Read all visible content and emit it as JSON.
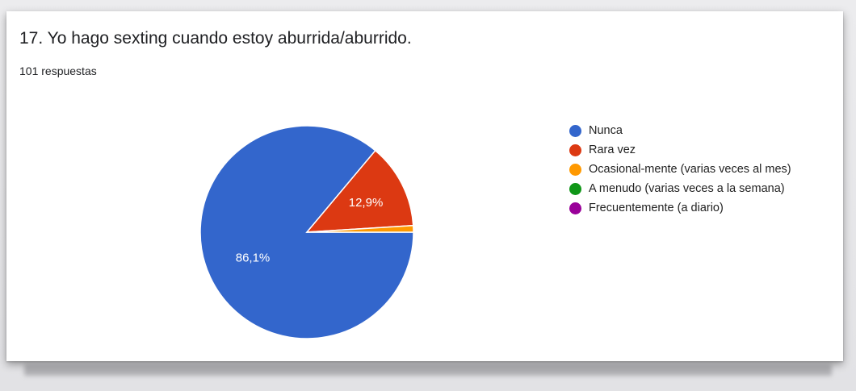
{
  "question": {
    "title": "17. Yo hago sexting cuando estoy aburrida/aburrido.",
    "responses": "101 respuestas"
  },
  "chart_data": {
    "type": "pie",
    "legend_position": "right",
    "slices": [
      {
        "label": "Nunca",
        "value": 86.1,
        "data_label": "86,1%",
        "color": "#3366cc"
      },
      {
        "label": "Rara vez",
        "value": 12.9,
        "data_label": "12,9%",
        "color": "#dc3912"
      },
      {
        "label": "Ocasional-mente (varias veces al mes)",
        "value": 1.0,
        "data_label": "",
        "color": "#ff9900"
      },
      {
        "label": "A menudo (varias veces a la semana)",
        "value": 0,
        "data_label": "",
        "color": "#109618"
      },
      {
        "label": "Frecuentemente (a diario)",
        "value": 0,
        "data_label": "",
        "color": "#990099"
      }
    ]
  }
}
